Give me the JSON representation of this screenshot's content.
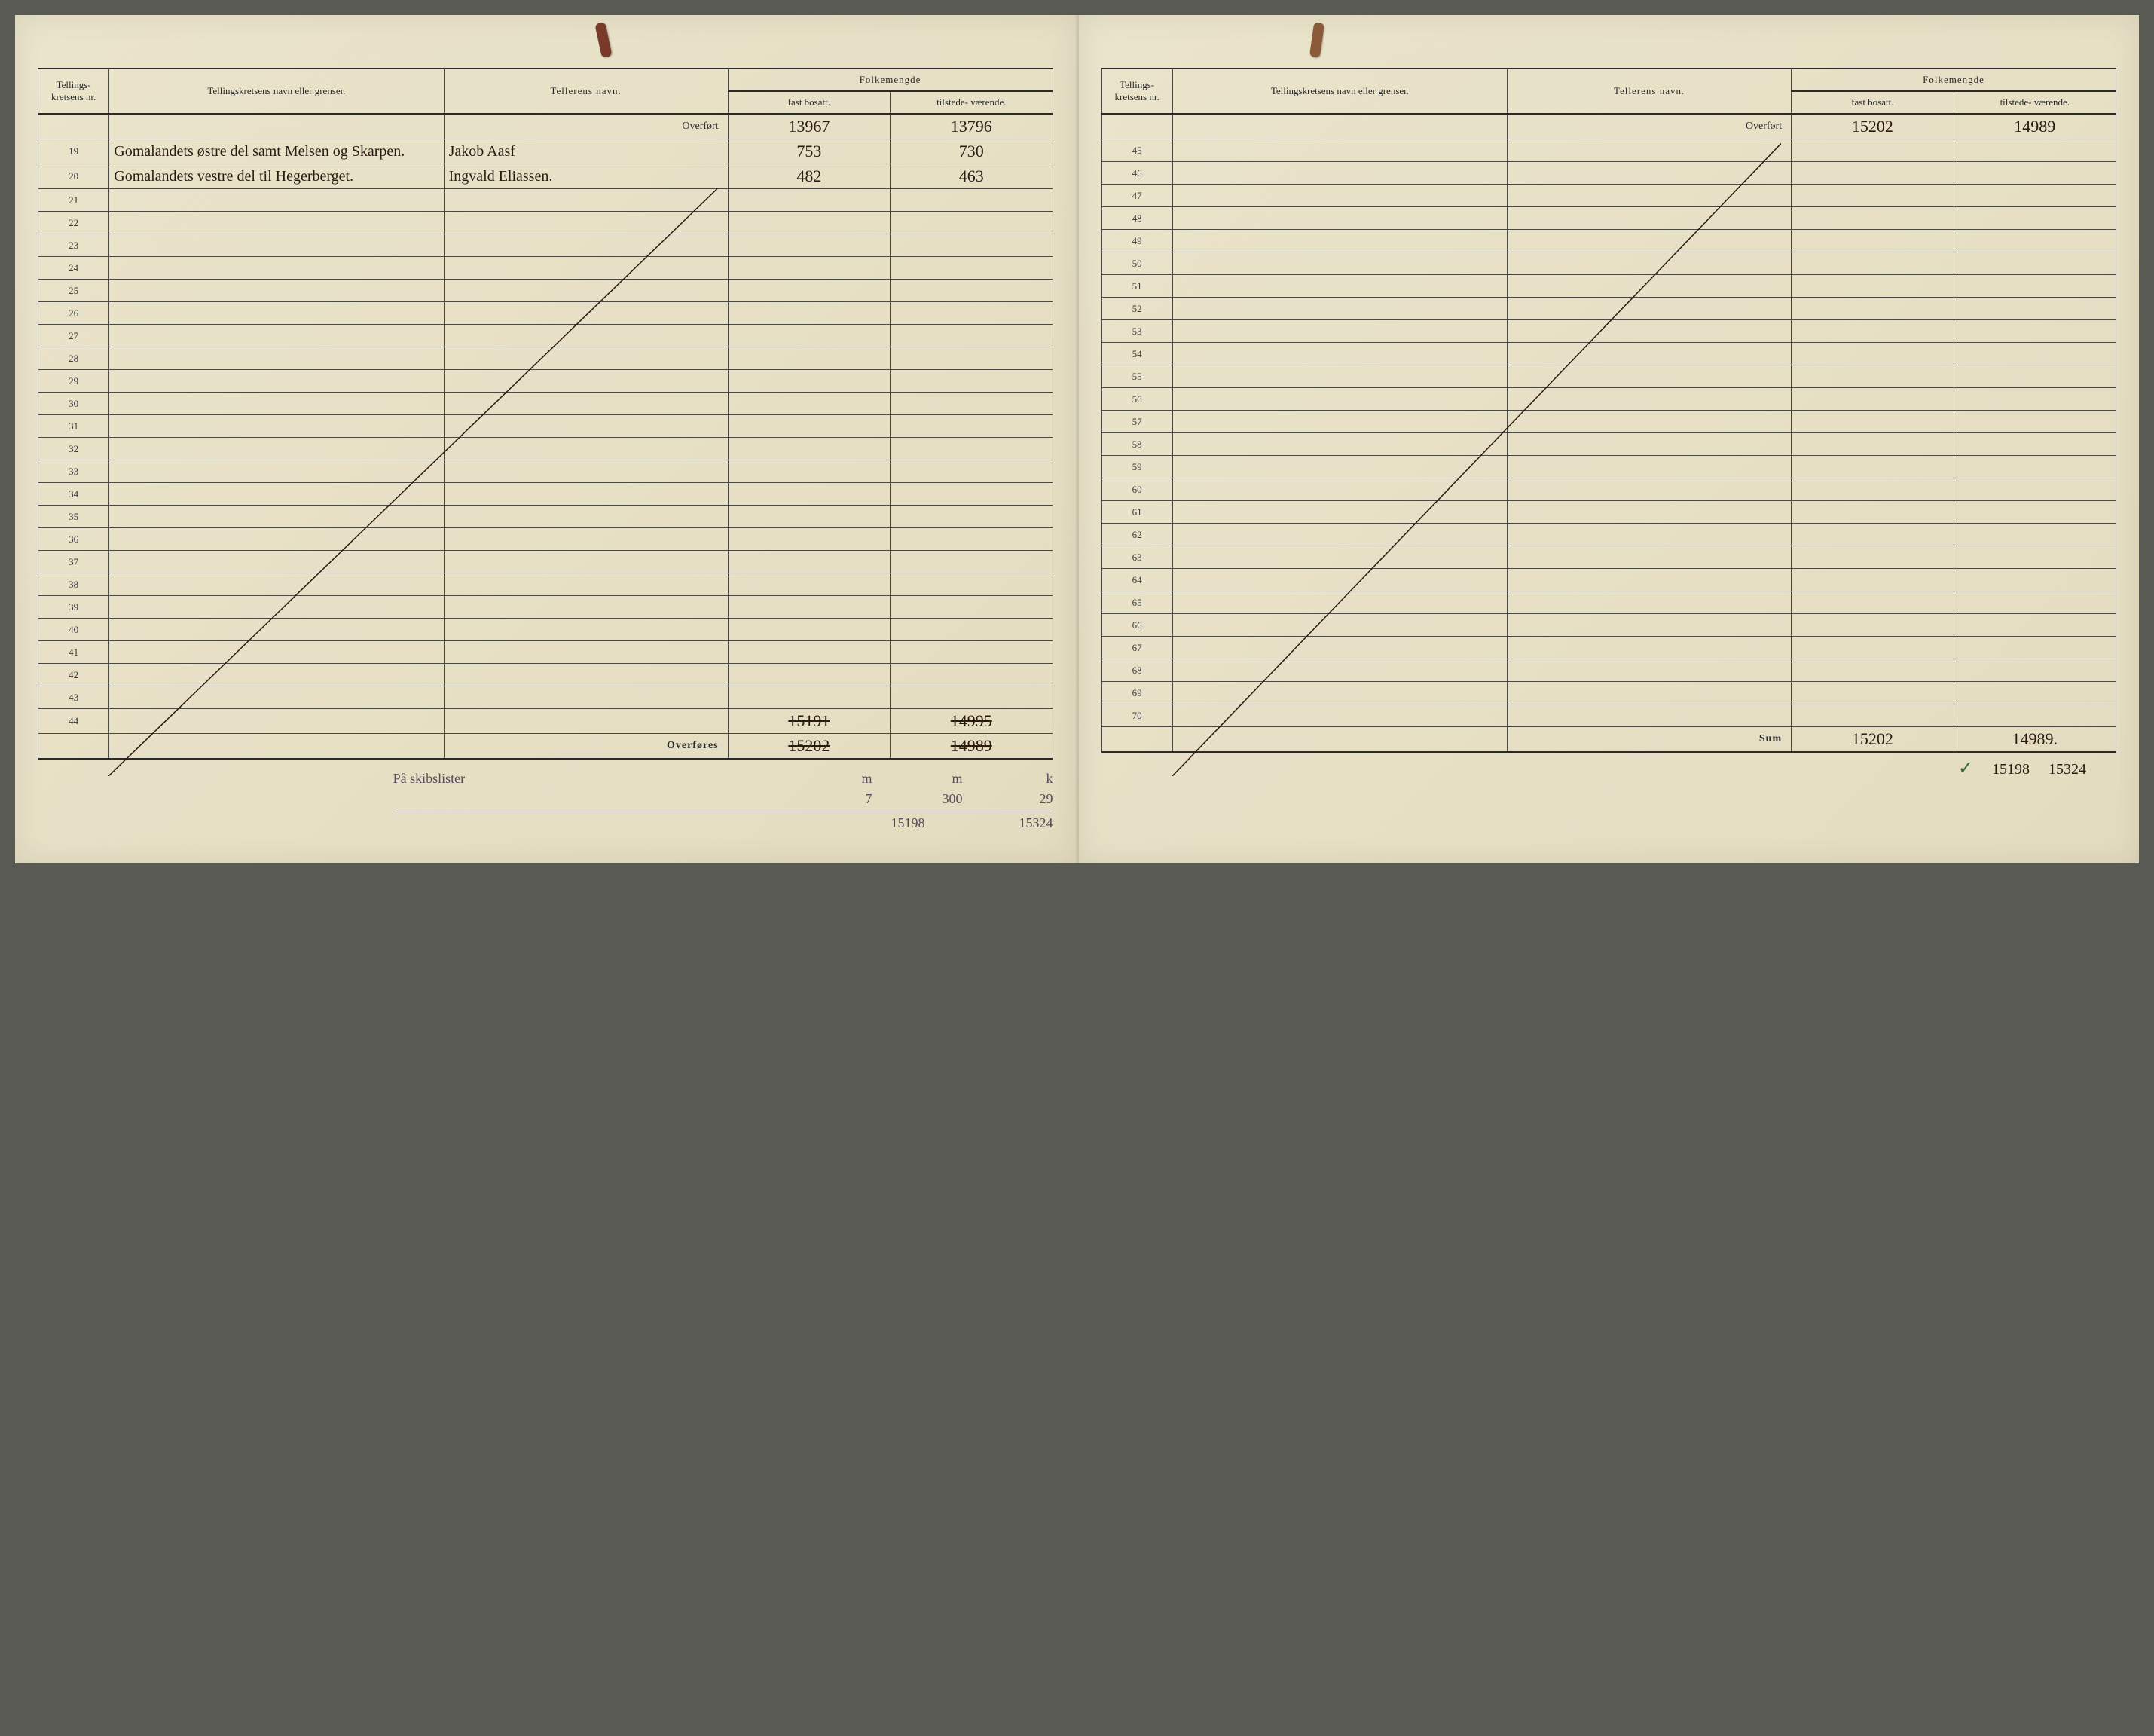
{
  "headers": {
    "nr": "Tellings-\nkretsens\nnr.",
    "navn": "Tellingskretsens navn eller grenser.",
    "teller": "Tellerens navn.",
    "folkemengde": "Folkemengde",
    "fast": "fast\nbosatt.",
    "tilstede": "tilstede-\nværende."
  },
  "labels": {
    "overfort": "Overført",
    "overfores": "Overføres",
    "sum": "Sum"
  },
  "left": {
    "overfort": {
      "fast": "13967",
      "tilstede": "13796"
    },
    "rows": [
      {
        "nr": "19",
        "navn": "Gomalandets østre del samt Melsen og Skarpen.",
        "teller": "Jakob Aasf",
        "fast": "753",
        "tilstede": "730"
      },
      {
        "nr": "20",
        "navn": "Gomalandets vestre del til Hegerberget.",
        "teller": "Ingvald Eliassen.",
        "fast": "482",
        "tilstede": "463"
      },
      {
        "nr": "21"
      },
      {
        "nr": "22"
      },
      {
        "nr": "23"
      },
      {
        "nr": "24"
      },
      {
        "nr": "25"
      },
      {
        "nr": "26"
      },
      {
        "nr": "27"
      },
      {
        "nr": "28"
      },
      {
        "nr": "29"
      },
      {
        "nr": "30"
      },
      {
        "nr": "31"
      },
      {
        "nr": "32"
      },
      {
        "nr": "33"
      },
      {
        "nr": "34"
      },
      {
        "nr": "35"
      },
      {
        "nr": "36"
      },
      {
        "nr": "37"
      },
      {
        "nr": "38"
      },
      {
        "nr": "39"
      },
      {
        "nr": "40"
      },
      {
        "nr": "41"
      },
      {
        "nr": "42"
      },
      {
        "nr": "43"
      },
      {
        "nr": "44",
        "fast": "15191",
        "tilstede": "14995",
        "struck_tilstede": true,
        "struck_fast": true
      }
    ],
    "overfores": {
      "fast": "15202",
      "tilstede": "14989",
      "struck": true
    },
    "annotations": {
      "label": "På skibslister",
      "line1": {
        "m": "m",
        "n": "m",
        "k": "k"
      },
      "line2": {
        "a": "7",
        "b": "300",
        "c": "29"
      },
      "total": {
        "a": "15198",
        "b": "15324"
      }
    }
  },
  "right": {
    "overfort": {
      "fast": "15202",
      "tilstede": "14989"
    },
    "rows": [
      {
        "nr": "45"
      },
      {
        "nr": "46"
      },
      {
        "nr": "47"
      },
      {
        "nr": "48"
      },
      {
        "nr": "49"
      },
      {
        "nr": "50"
      },
      {
        "nr": "51"
      },
      {
        "nr": "52"
      },
      {
        "nr": "53"
      },
      {
        "nr": "54"
      },
      {
        "nr": "55"
      },
      {
        "nr": "56"
      },
      {
        "nr": "57"
      },
      {
        "nr": "58"
      },
      {
        "nr": "59"
      },
      {
        "nr": "60"
      },
      {
        "nr": "61"
      },
      {
        "nr": "62"
      },
      {
        "nr": "63"
      },
      {
        "nr": "64"
      },
      {
        "nr": "65"
      },
      {
        "nr": "66"
      },
      {
        "nr": "67"
      },
      {
        "nr": "68"
      },
      {
        "nr": "69"
      },
      {
        "nr": "70"
      }
    ],
    "sum": {
      "fast": "15202",
      "tilstede": "14989."
    },
    "below": {
      "tick": "✓",
      "a": "15198",
      "b": "15324"
    }
  },
  "colors": {
    "paper": "#e8e2c8",
    "ink": "#2a2a2a",
    "script": "#2a1a10",
    "pencil": "#5a4a5a",
    "rule": "#4a4a42",
    "clip": "#7a3a2a"
  },
  "diagonal": {
    "stroke": "#2a1a10",
    "width": 1.5
  }
}
